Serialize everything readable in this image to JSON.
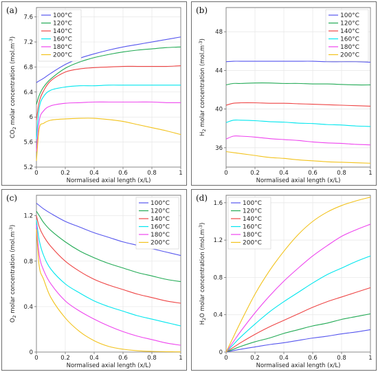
{
  "legend_labels": [
    "100°C",
    "120°C",
    "140°C",
    "160°C",
    "180°C",
    "200°C"
  ],
  "series_colors": [
    "#5555ee",
    "#22aa55",
    "#ee4444",
    "#00e6ee",
    "#ee44ee",
    "#f2c21b"
  ],
  "chart_data": [
    {
      "panel": "(a)",
      "type": "line",
      "xlabel": "Normalised axial length (x/L)",
      "ylabel_pre": "CO",
      "ylabel_sub": "2",
      "ylabel_post": " molar concentration (mol.m",
      "ylabel_sup": "-3",
      "ylabel_end": ")",
      "xlim": [
        0,
        1
      ],
      "ylim": [
        5.2,
        7.75
      ],
      "xticks": [
        0,
        0.2,
        0.4,
        0.6,
        0.8,
        1
      ],
      "xticklabels": [
        "0",
        "0.2",
        "0.4",
        "0.6",
        "0.8",
        "1"
      ],
      "yticks": [
        5.2,
        5.6,
        6,
        6.4,
        6.8,
        7.2,
        7.6
      ],
      "yticklabels": [
        "5.2",
        "5.6",
        "6",
        "6.4",
        "6.8",
        "7.2",
        "7.6"
      ],
      "legend_position": "top-left",
      "x": [
        0,
        0.02,
        0.05,
        0.1,
        0.2,
        0.3,
        0.4,
        0.5,
        0.6,
        0.7,
        0.8,
        0.9,
        1.0
      ],
      "series": [
        {
          "name": "100°C",
          "values": [
            6.55,
            6.58,
            6.62,
            6.7,
            6.84,
            6.94,
            7.01,
            7.07,
            7.12,
            7.16,
            7.2,
            7.24,
            7.28
          ]
        },
        {
          "name": "120°C",
          "values": [
            6.2,
            6.35,
            6.48,
            6.61,
            6.78,
            6.88,
            6.95,
            7.0,
            7.04,
            7.07,
            7.09,
            7.11,
            7.12
          ]
        },
        {
          "name": "140°C",
          "values": [
            5.95,
            6.25,
            6.42,
            6.58,
            6.72,
            6.77,
            6.79,
            6.8,
            6.81,
            6.81,
            6.81,
            6.81,
            6.82
          ]
        },
        {
          "name": "160°C",
          "values": [
            5.65,
            6.15,
            6.33,
            6.43,
            6.48,
            6.5,
            6.5,
            6.51,
            6.51,
            6.51,
            6.51,
            6.51,
            6.51
          ]
        },
        {
          "name": "180°C",
          "values": [
            5.45,
            5.95,
            6.1,
            6.18,
            6.22,
            6.23,
            6.24,
            6.24,
            6.24,
            6.24,
            6.24,
            6.23,
            6.23
          ]
        },
        {
          "name": "200°C",
          "values": [
            5.3,
            5.82,
            5.9,
            5.95,
            5.97,
            5.98,
            5.98,
            5.96,
            5.93,
            5.88,
            5.83,
            5.78,
            5.72
          ]
        }
      ]
    },
    {
      "panel": "(b)",
      "type": "line",
      "xlabel": "Normalised axial length (x/L)",
      "ylabel_pre": "H",
      "ylabel_sub": "2",
      "ylabel_post": " molar concentration (mol.m",
      "ylabel_sup": "-3",
      "ylabel_end": ")",
      "xlim": [
        0,
        1
      ],
      "ylim": [
        34,
        50.5
      ],
      "xticks": [
        0,
        0.2,
        0.4,
        0.6,
        0.8,
        1
      ],
      "xticklabels": [
        "0",
        "0.2",
        "0.4",
        "0.6",
        "0.8",
        "1"
      ],
      "yticks": [
        36,
        40,
        44,
        48
      ],
      "yticklabels": [
        "36",
        "40",
        "44",
        "48"
      ],
      "legend_position": "top-right",
      "x": [
        0,
        0.05,
        0.1,
        0.2,
        0.3,
        0.4,
        0.5,
        0.6,
        0.7,
        0.8,
        0.9,
        1.0
      ],
      "series": [
        {
          "name": "100°C",
          "values": [
            44.9,
            44.95,
            44.95,
            44.95,
            44.95,
            44.95,
            44.95,
            44.95,
            44.9,
            44.9,
            44.9,
            44.85
          ]
        },
        {
          "name": "120°C",
          "values": [
            42.5,
            42.65,
            42.65,
            42.7,
            42.7,
            42.65,
            42.65,
            42.6,
            42.6,
            42.55,
            42.5,
            42.5
          ]
        },
        {
          "name": "140°C",
          "values": [
            40.4,
            40.6,
            40.65,
            40.65,
            40.6,
            40.6,
            40.55,
            40.5,
            40.45,
            40.4,
            40.35,
            40.3
          ]
        },
        {
          "name": "160°C",
          "values": [
            38.6,
            38.85,
            38.85,
            38.8,
            38.7,
            38.65,
            38.55,
            38.5,
            38.4,
            38.35,
            38.25,
            38.2
          ]
        },
        {
          "name": "180°C",
          "values": [
            36.9,
            37.2,
            37.2,
            37.1,
            36.95,
            36.85,
            36.75,
            36.6,
            36.5,
            36.45,
            36.35,
            36.3
          ]
        },
        {
          "name": "200°C",
          "values": [
            35.6,
            35.5,
            35.4,
            35.2,
            35.0,
            34.9,
            34.75,
            34.65,
            34.55,
            34.5,
            34.45,
            34.4
          ]
        }
      ]
    },
    {
      "panel": "(c)",
      "type": "line",
      "xlabel": "Normalised axial length (x/L)",
      "ylabel_pre": "O",
      "ylabel_sub": "2",
      "ylabel_post": " molar concentration (mol.m",
      "ylabel_sup": "-3",
      "ylabel_end": ")",
      "xlim": [
        0,
        1
      ],
      "ylim": [
        0,
        1.38
      ],
      "xticks": [
        0,
        0.2,
        0.4,
        0.6,
        0.8,
        1
      ],
      "xticklabels": [
        "0",
        "0.2",
        "0.4",
        "0.6",
        "0.8",
        "1"
      ],
      "yticks": [
        0,
        0.4,
        0.8,
        1.2
      ],
      "yticklabels": [
        "0",
        "0.4",
        "0.8",
        "1.2"
      ],
      "legend_position": "top-right",
      "x": [
        0,
        0.02,
        0.05,
        0.1,
        0.2,
        0.3,
        0.4,
        0.5,
        0.6,
        0.7,
        0.8,
        0.9,
        1.0
      ],
      "series": [
        {
          "name": "100°C",
          "values": [
            1.31,
            1.29,
            1.26,
            1.22,
            1.15,
            1.1,
            1.05,
            1.01,
            0.97,
            0.94,
            0.91,
            0.88,
            0.85
          ]
        },
        {
          "name": "120°C",
          "values": [
            1.24,
            1.2,
            1.14,
            1.07,
            0.97,
            0.89,
            0.83,
            0.78,
            0.74,
            0.7,
            0.67,
            0.64,
            0.62
          ]
        },
        {
          "name": "140°C",
          "values": [
            1.2,
            1.1,
            1.02,
            0.93,
            0.8,
            0.71,
            0.64,
            0.59,
            0.55,
            0.51,
            0.48,
            0.45,
            0.43
          ]
        },
        {
          "name": "160°C",
          "values": [
            1.16,
            0.98,
            0.85,
            0.73,
            0.6,
            0.52,
            0.45,
            0.4,
            0.36,
            0.32,
            0.29,
            0.26,
            0.23
          ]
        },
        {
          "name": "180°C",
          "values": [
            1.12,
            0.85,
            0.72,
            0.6,
            0.45,
            0.36,
            0.29,
            0.23,
            0.18,
            0.14,
            0.11,
            0.08,
            0.06
          ]
        },
        {
          "name": "200°C",
          "values": [
            1.08,
            0.75,
            0.64,
            0.48,
            0.3,
            0.18,
            0.1,
            0.05,
            0.025,
            0.012,
            0.006,
            0.003,
            0.002
          ]
        }
      ]
    },
    {
      "panel": "(d)",
      "type": "line",
      "xlabel": "Normalised axial length (x/L)",
      "ylabel_pre": "H",
      "ylabel_sub": "2",
      "ylabel_post": "O molar concentration (mol.m",
      "ylabel_sup": "-3",
      "ylabel_end": ")",
      "xlim": [
        0,
        1
      ],
      "ylim": [
        0,
        1.68
      ],
      "xticks": [
        0,
        0.2,
        0.4,
        0.6,
        0.8,
        1
      ],
      "xticklabels": [
        "0",
        "0.2",
        "0.4",
        "0.6",
        "0.8",
        "1"
      ],
      "yticks": [
        0,
        0.4,
        0.8,
        1.2,
        1.6
      ],
      "yticklabels": [
        "0",
        "0.4",
        "0.8",
        "1.2",
        "1.6"
      ],
      "legend_position": "top-left",
      "x": [
        0,
        0.05,
        0.1,
        0.2,
        0.3,
        0.4,
        0.5,
        0.6,
        0.7,
        0.8,
        0.9,
        1.0
      ],
      "series": [
        {
          "name": "100°C",
          "values": [
            0,
            0.015,
            0.03,
            0.055,
            0.08,
            0.1,
            0.125,
            0.15,
            0.17,
            0.195,
            0.215,
            0.24
          ]
        },
        {
          "name": "120°C",
          "values": [
            0,
            0.03,
            0.06,
            0.11,
            0.15,
            0.2,
            0.24,
            0.28,
            0.31,
            0.35,
            0.38,
            0.41
          ]
        },
        {
          "name": "140°C",
          "values": [
            0,
            0.05,
            0.1,
            0.19,
            0.27,
            0.34,
            0.41,
            0.48,
            0.54,
            0.59,
            0.64,
            0.69
          ]
        },
        {
          "name": "160°C",
          "values": [
            0,
            0.08,
            0.16,
            0.3,
            0.43,
            0.54,
            0.64,
            0.74,
            0.83,
            0.9,
            0.97,
            1.03
          ]
        },
        {
          "name": "180°C",
          "values": [
            0,
            0.11,
            0.22,
            0.42,
            0.6,
            0.76,
            0.9,
            1.03,
            1.14,
            1.24,
            1.31,
            1.37
          ]
        },
        {
          "name": "200°C",
          "values": [
            0,
            0.16,
            0.32,
            0.62,
            0.87,
            1.08,
            1.26,
            1.4,
            1.5,
            1.57,
            1.62,
            1.66
          ]
        }
      ]
    }
  ]
}
